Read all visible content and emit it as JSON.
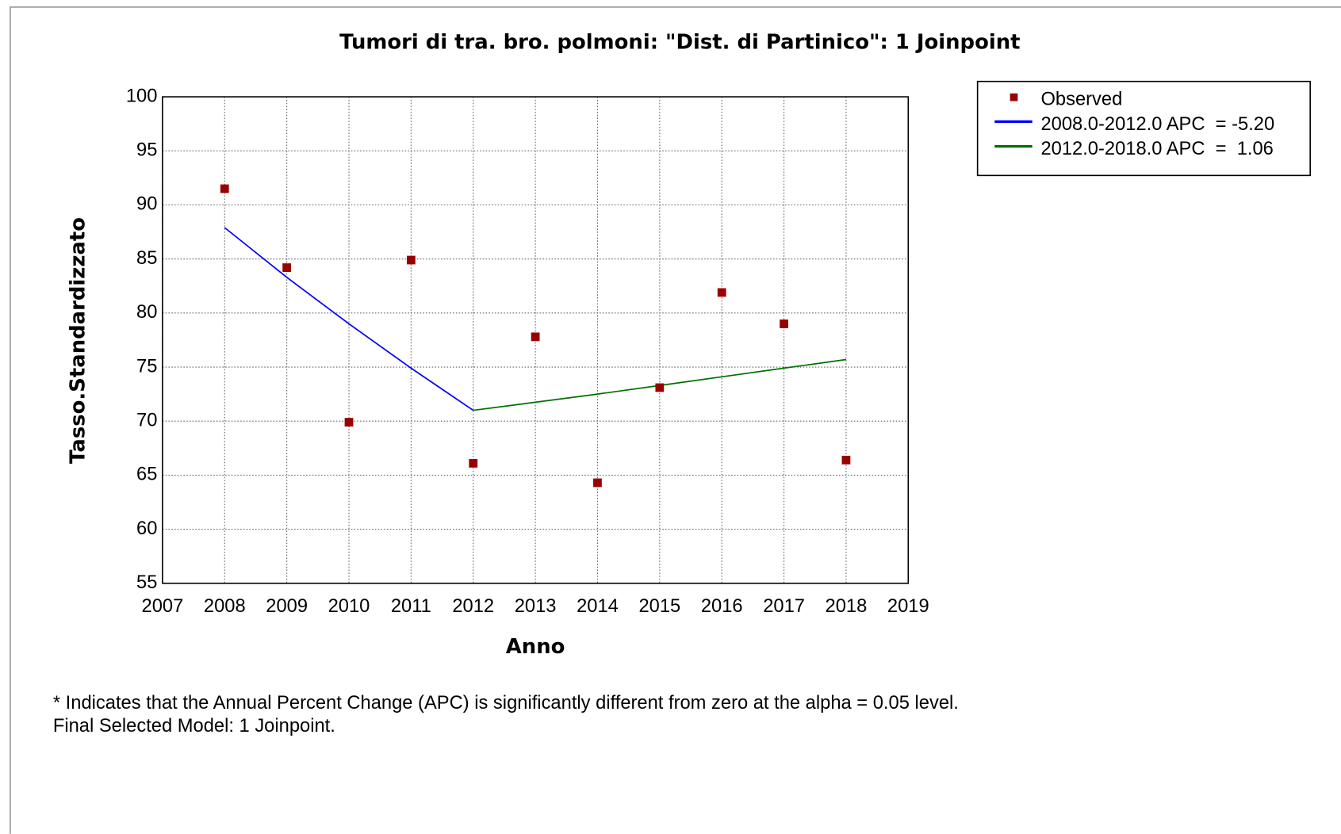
{
  "chart_data": {
    "type": "line",
    "title": "Tumori di tra. bro. polmoni: \"Dist. di Partinico\": 1 Joinpoint",
    "x_label": "Anno",
    "y_label": "Tasso.Standardizzato",
    "xlim": [
      2007,
      2019
    ],
    "xticks": [
      2007,
      2008,
      2009,
      2010,
      2011,
      2012,
      2013,
      2014,
      2015,
      2016,
      2017,
      2018,
      2019
    ],
    "ylim": [
      55,
      100
    ],
    "yticks": [
      55,
      60,
      65,
      70,
      75,
      80,
      85,
      90,
      95,
      100
    ],
    "grid": true,
    "legend": "outside-top-right",
    "series": [
      {
        "name": "Observed",
        "color": "#990000",
        "style": "markers",
        "x": [
          2008,
          2009,
          2010,
          2011,
          2012,
          2013,
          2014,
          2015,
          2016,
          2017,
          2018
        ],
        "values": [
          91.5,
          84.2,
          69.9,
          84.9,
          66.1,
          77.8,
          64.3,
          73.1,
          81.9,
          79.0,
          66.4
        ]
      },
      {
        "name": "2008.0-2012.0 APC  = -5.20",
        "color": "#0000ff",
        "style": "line",
        "x": [
          2008,
          2009,
          2010,
          2011,
          2012
        ],
        "values": [
          87.9,
          83.3,
          79.0,
          74.9,
          71.0
        ]
      },
      {
        "name": "2012.0-2018.0 APC  =  1.06",
        "color": "#007000",
        "style": "line",
        "x": [
          2012,
          2013,
          2014,
          2015,
          2016,
          2017,
          2018
        ],
        "values": [
          71.0,
          71.75,
          72.5,
          73.3,
          74.1,
          74.9,
          75.7
        ]
      }
    ],
    "notes": [
      "* Indicates that the Annual Percent Change (APC) is significantly different from zero at the alpha = 0.05 level.",
      "Final Selected Model: 1 Joinpoint."
    ]
  }
}
